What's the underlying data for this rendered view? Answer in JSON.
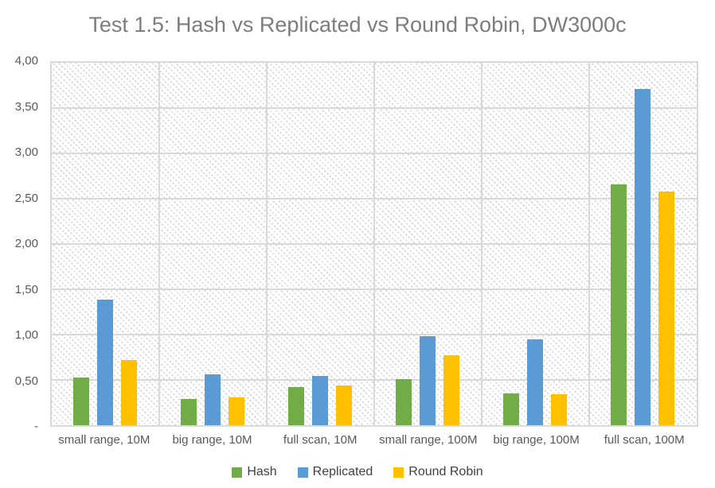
{
  "chart_data": {
    "type": "bar",
    "title": "Test 1.5: Hash vs Replicated vs Round Robin, DW3000c",
    "categories": [
      "small range, 10M",
      "big range, 10M",
      "full scan, 10M",
      "small range, 100M",
      "big range, 100M",
      "full scan, 100M"
    ],
    "series": [
      {
        "name": "Hash",
        "color": "#70AD47",
        "values": [
          0.53,
          0.29,
          0.42,
          0.51,
          0.35,
          2.66
        ]
      },
      {
        "name": "Replicated",
        "color": "#5B9BD5",
        "values": [
          1.39,
          0.56,
          0.54,
          0.98,
          0.95,
          3.71
        ]
      },
      {
        "name": "Round Robin",
        "color": "#FFC000",
        "values": [
          0.72,
          0.31,
          0.44,
          0.77,
          0.34,
          2.58
        ]
      }
    ],
    "y_axis": {
      "min": 0,
      "max": 4,
      "tick_step": 0.5,
      "tick_labels_bottom_to_top": [
        "-",
        "0,50",
        "1,00",
        "1,50",
        "2,00",
        "2,50",
        "3,00",
        "3,50",
        "4,00"
      ]
    },
    "grid": {
      "horizontal": true,
      "vertical": true
    },
    "legend_position": "bottom",
    "colors": {
      "gridline": "#d9d9d9",
      "title_text": "#7d7d7d",
      "axis_text": "#595959",
      "legend_text": "#404040"
    }
  }
}
